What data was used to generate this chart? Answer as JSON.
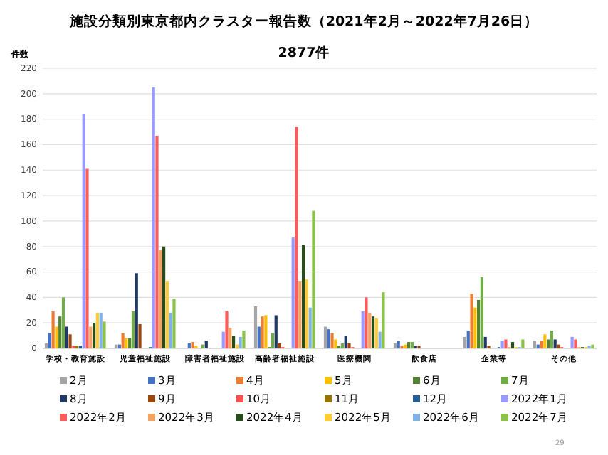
{
  "chart_data": {
    "type": "bar",
    "title": "施設分類別東京都内クラスター報告数（2021年2月～2022年7月26日）",
    "subtitle": "2877件",
    "ylabel": "件数",
    "categories": [
      "学校・教育施設",
      "児童福祉施設",
      "障害者福祉施設",
      "高齢者福祉施設",
      "医療機関",
      "飲食店",
      "企業等",
      "その他"
    ],
    "series": [
      {
        "name": "2月",
        "color": "#a5a5a5",
        "values": [
          4,
          3,
          null,
          33,
          17,
          4,
          9,
          6
        ]
      },
      {
        "name": "3月",
        "color": "#4472c4",
        "values": [
          12,
          3,
          4,
          17,
          15,
          6,
          14,
          3
        ]
      },
      {
        "name": "4月",
        "color": "#ed7d31",
        "values": [
          29,
          12,
          5,
          25,
          12,
          2,
          43,
          6
        ]
      },
      {
        "name": "5月",
        "color": "#ffc000",
        "values": [
          17,
          8,
          2,
          26,
          7,
          3,
          32,
          11
        ]
      },
      {
        "name": "6月",
        "color": "#548235",
        "values": [
          25,
          8,
          0,
          1,
          2,
          5,
          38,
          7
        ]
      },
      {
        "name": "7月",
        "color": "#70ad47",
        "values": [
          40,
          29,
          3,
          12,
          4,
          5,
          56,
          14
        ]
      },
      {
        "name": "8月",
        "color": "#203864",
        "values": [
          17,
          59,
          6,
          26,
          10,
          2,
          9,
          7
        ]
      },
      {
        "name": "9月",
        "color": "#9e480e",
        "values": [
          11,
          19,
          0,
          4,
          4,
          2,
          2,
          3
        ]
      },
      {
        "name": "10月",
        "color": "#ff5050",
        "values": [
          2,
          0,
          0,
          1,
          1,
          0,
          0,
          1
        ]
      },
      {
        "name": "11月",
        "color": "#997300",
        "values": [
          2,
          0,
          0,
          0,
          0,
          0,
          0,
          0
        ]
      },
      {
        "name": "12月",
        "color": "#255e91",
        "values": [
          2,
          1,
          0,
          0,
          0,
          0,
          1,
          0
        ]
      },
      {
        "name": "2022年1月",
        "color": "#9999ff",
        "values": [
          184,
          205,
          13,
          87,
          29,
          0,
          6,
          9
        ]
      },
      {
        "name": "2022年2月",
        "color": "#ff5b5b",
        "values": [
          141,
          167,
          29,
          174,
          40,
          0,
          7,
          7
        ]
      },
      {
        "name": "2022年3月",
        "color": "#f4a460",
        "values": [
          17,
          77,
          16,
          53,
          28,
          0,
          1,
          1
        ]
      },
      {
        "name": "2022年4月",
        "color": "#264d1a",
        "values": [
          20,
          80,
          10,
          81,
          25,
          0,
          5,
          1
        ]
      },
      {
        "name": "2022年5月",
        "color": "#ffcc33",
        "values": [
          28,
          53,
          3,
          54,
          24,
          0,
          1,
          1
        ]
      },
      {
        "name": "2022年6月",
        "color": "#7fb2e5",
        "values": [
          28,
          28,
          9,
          32,
          13,
          0,
          1,
          2
        ]
      },
      {
        "name": "2022年7月",
        "color": "#8bc34a",
        "values": [
          21,
          39,
          14,
          108,
          44,
          0,
          7,
          3
        ]
      }
    ],
    "ylim": [
      0,
      220
    ],
    "yticks": [
      0,
      20,
      40,
      60,
      80,
      100,
      120,
      140,
      160,
      180,
      200,
      220
    ],
    "grid": "y",
    "legend": "bottom",
    "annotations": [
      "29"
    ]
  }
}
